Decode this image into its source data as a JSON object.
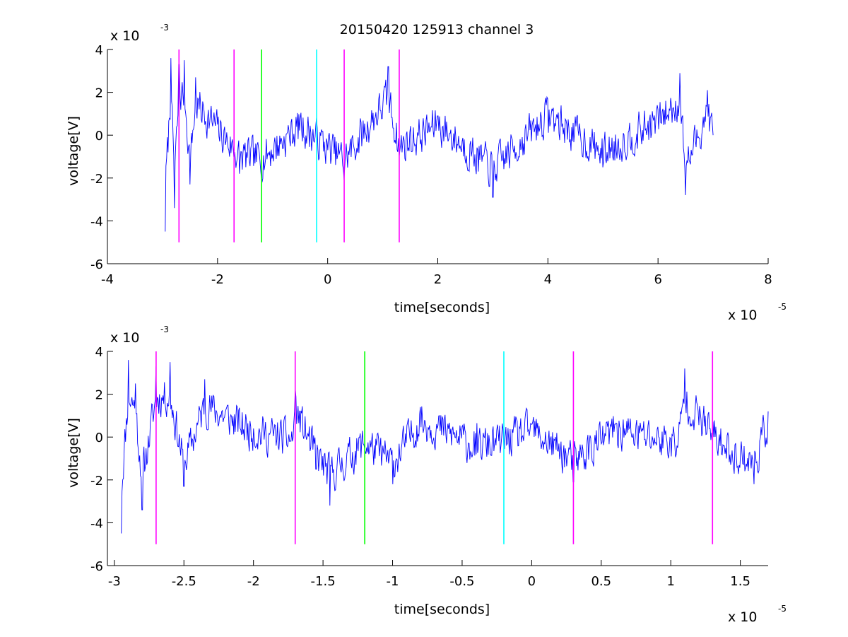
{
  "title": "20150420 125913 channel 3",
  "chart_data": [
    {
      "type": "line",
      "xlabel": "time[seconds]",
      "ylabel": "voltage[V]",
      "x_multiplier": "x 10",
      "x_exponent": "-5",
      "y_multiplier": "x 10",
      "y_exponent": "-3",
      "xlim": [
        -4,
        8
      ],
      "ylim": [
        -6,
        4
      ],
      "xticks": [
        -4,
        -2,
        0,
        2,
        4,
        6,
        8
      ],
      "yticks": [
        -6,
        -4,
        -2,
        0,
        2,
        4
      ],
      "xtick_labels": [
        "-4",
        "-2",
        "0",
        "2",
        "4",
        "6",
        "8"
      ],
      "ytick_labels": [
        "-6",
        "-4",
        "-2",
        "0",
        "2",
        "4"
      ],
      "series": [
        {
          "color": "#0000ff",
          "x_range": [
            -2.95,
            7.0
          ],
          "seed": 7,
          "points": [
            [
              -2.95,
              -4.5
            ],
            [
              -2.9,
              -0.8
            ],
            [
              -2.85,
              3.6
            ],
            [
              -2.78,
              -3.4
            ],
            [
              -2.7,
              3.3
            ],
            [
              -2.6,
              3.5
            ],
            [
              -2.5,
              -2.3
            ],
            [
              -2.4,
              2.7
            ],
            [
              -2.0,
              0.5
            ],
            [
              -1.6,
              -1.8
            ],
            [
              -1.2,
              -2.0
            ],
            [
              -0.5,
              0.8
            ],
            [
              0.3,
              -2.1
            ],
            [
              1.1,
              3.2
            ],
            [
              1.3,
              -1.0
            ],
            [
              2.0,
              0.9
            ],
            [
              3.0,
              -2.9
            ],
            [
              4.0,
              1.7
            ],
            [
              5.0,
              -1.5
            ],
            [
              6.0,
              1.2
            ],
            [
              6.4,
              2.9
            ],
            [
              6.5,
              -2.8
            ],
            [
              6.9,
              2.1
            ],
            [
              7.0,
              0.0
            ]
          ]
        }
      ],
      "markers": [
        {
          "x": -2.7,
          "y_top": 4,
          "y_bottom": -5,
          "color": "#ff00ff"
        },
        {
          "x": -1.7,
          "y_top": 4,
          "y_bottom": -5,
          "color": "#ff00ff"
        },
        {
          "x": -1.2,
          "y_top": 4,
          "y_bottom": -5,
          "color": "#00ff00"
        },
        {
          "x": -0.2,
          "y_top": 4,
          "y_bottom": -5,
          "color": "#00ffff"
        },
        {
          "x": 0.3,
          "y_top": 4,
          "y_bottom": -5,
          "color": "#ff00ff"
        },
        {
          "x": 1.3,
          "y_top": 4,
          "y_bottom": -5,
          "color": "#ff00ff"
        }
      ]
    },
    {
      "type": "line",
      "xlabel": "time[seconds]",
      "ylabel": "voltage[V]",
      "x_multiplier": "x 10",
      "x_exponent": "-5",
      "y_multiplier": "x 10",
      "y_exponent": "-3",
      "xlim": [
        -3.05,
        1.7
      ],
      "ylim": [
        -6,
        4
      ],
      "xticks": [
        -3,
        -2.5,
        -2,
        -1.5,
        -1,
        -0.5,
        0,
        0.5,
        1,
        1.5
      ],
      "yticks": [
        -6,
        -4,
        -2,
        0,
        2,
        4
      ],
      "xtick_labels": [
        "-3",
        "-2.5",
        "-2",
        "-1.5",
        "-1",
        "-0.5",
        "0",
        "0.5",
        "1",
        "1.5"
      ],
      "ytick_labels": [
        "-6",
        "-4",
        "-2",
        "0",
        "2",
        "4"
      ],
      "series": [
        {
          "color": "#0000ff",
          "x_range": [
            -2.95,
            1.7
          ],
          "seed": 11,
          "points": [
            [
              -2.95,
              -4.5
            ],
            [
              -2.9,
              3.6
            ],
            [
              -2.85,
              2.5
            ],
            [
              -2.8,
              -3.4
            ],
            [
              -2.7,
              3.3
            ],
            [
              -2.6,
              3.5
            ],
            [
              -2.5,
              -2.3
            ],
            [
              -2.35,
              2.7
            ],
            [
              -2.0,
              0.4
            ],
            [
              -1.72,
              -0.2
            ],
            [
              -1.7,
              2.3
            ],
            [
              -1.55,
              -1.5
            ],
            [
              -1.45,
              -3.2
            ],
            [
              -1.2,
              -0.5
            ],
            [
              -1.0,
              -2.2
            ],
            [
              -0.8,
              1.4
            ],
            [
              -0.4,
              -0.8
            ],
            [
              -0.2,
              -0.4
            ],
            [
              0.0,
              0.6
            ],
            [
              0.3,
              -2.1
            ],
            [
              0.6,
              0.6
            ],
            [
              1.05,
              -0.5
            ],
            [
              1.1,
              3.2
            ],
            [
              1.3,
              0.2
            ],
            [
              1.4,
              -1.0
            ],
            [
              1.6,
              -2.2
            ],
            [
              1.7,
              1.2
            ]
          ]
        }
      ],
      "markers": [
        {
          "x": -2.7,
          "y_top": 4,
          "y_bottom": -5,
          "color": "#ff00ff"
        },
        {
          "x": -1.7,
          "y_top": 4,
          "y_bottom": -5,
          "color": "#ff00ff"
        },
        {
          "x": -1.2,
          "y_top": 4,
          "y_bottom": -5,
          "color": "#00ff00"
        },
        {
          "x": -0.2,
          "y_top": 4,
          "y_bottom": -5,
          "color": "#00ffff"
        },
        {
          "x": 0.3,
          "y_top": 4,
          "y_bottom": -5,
          "color": "#ff00ff"
        },
        {
          "x": 1.3,
          "y_top": 4,
          "y_bottom": -5,
          "color": "#ff00ff"
        }
      ]
    }
  ]
}
